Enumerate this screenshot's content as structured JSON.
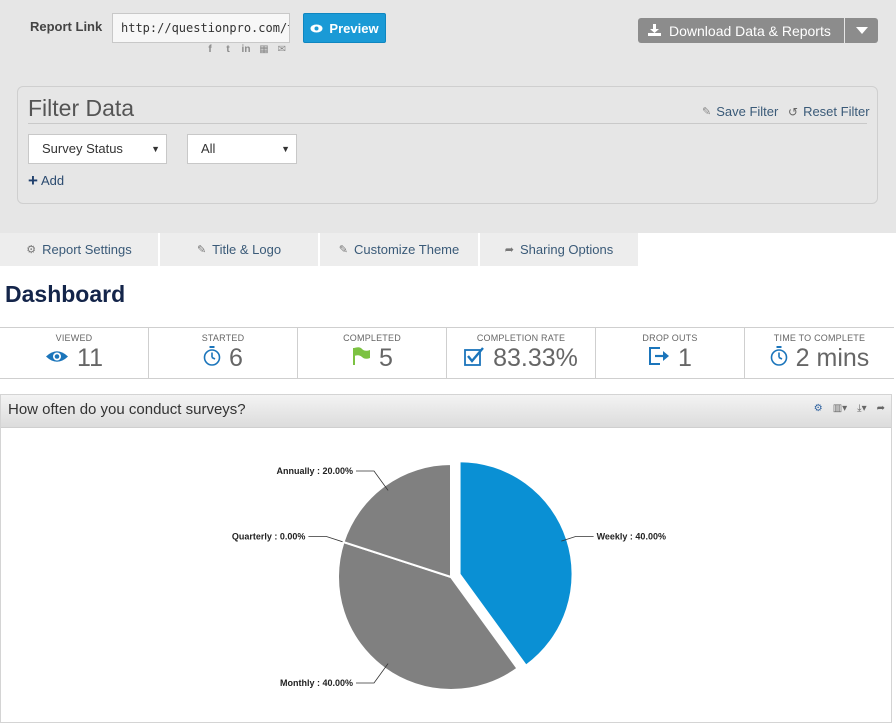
{
  "header": {
    "report_link_label": "Report Link",
    "report_link_value": "http://questionpro.com/t/P",
    "preview_label": "Preview",
    "download_label": "Download Data & Reports"
  },
  "filter": {
    "title": "Filter Data",
    "save_label": "Save Filter",
    "reset_label": "Reset Filter",
    "field_select": "Survey Status",
    "value_select": "All",
    "add_label": "Add"
  },
  "tabs": [
    {
      "label": "Report Settings",
      "icon": "gears-icon"
    },
    {
      "label": "Title & Logo",
      "icon": "edit-icon"
    },
    {
      "label": "Customize Theme",
      "icon": "edit-icon"
    },
    {
      "label": "Sharing Options",
      "icon": "share-icon"
    }
  ],
  "dashboard_title": "Dashboard",
  "stats": [
    {
      "label": "VIEWED",
      "value": "11",
      "icon": "eye-icon",
      "color": "#1b75bb"
    },
    {
      "label": "STARTED",
      "value": "6",
      "icon": "stopwatch-icon",
      "color": "#1b75bb"
    },
    {
      "label": "COMPLETED",
      "value": "5",
      "icon": "flag-icon",
      "color": "#7cc242"
    },
    {
      "label": "COMPLETION RATE",
      "value": "83.33%",
      "icon": "checkbox-icon",
      "color": "#1b75bb"
    },
    {
      "label": "DROP OUTS",
      "value": "1",
      "icon": "exit-icon",
      "color": "#1b75bb"
    },
    {
      "label": "TIME TO COMPLETE",
      "value": "2 mins",
      "icon": "stopwatch-icon",
      "color": "#1b75bb"
    }
  ],
  "panel": {
    "title": "How often do you conduct surveys?"
  },
  "chart_data": {
    "type": "pie",
    "title": "",
    "categories": [
      "Weekly",
      "Monthly",
      "Quarterly",
      "Annually"
    ],
    "values": [
      40.0,
      40.0,
      0.0,
      20.0
    ],
    "labels": [
      "Weekly : 40.00%",
      "Monthly : 40.00%",
      "Quarterly : 0.00%",
      "Annually : 20.00%"
    ],
    "colors": [
      "#0a90d4",
      "#808080",
      "#808080",
      "#808080"
    ],
    "exploded": "Weekly"
  }
}
